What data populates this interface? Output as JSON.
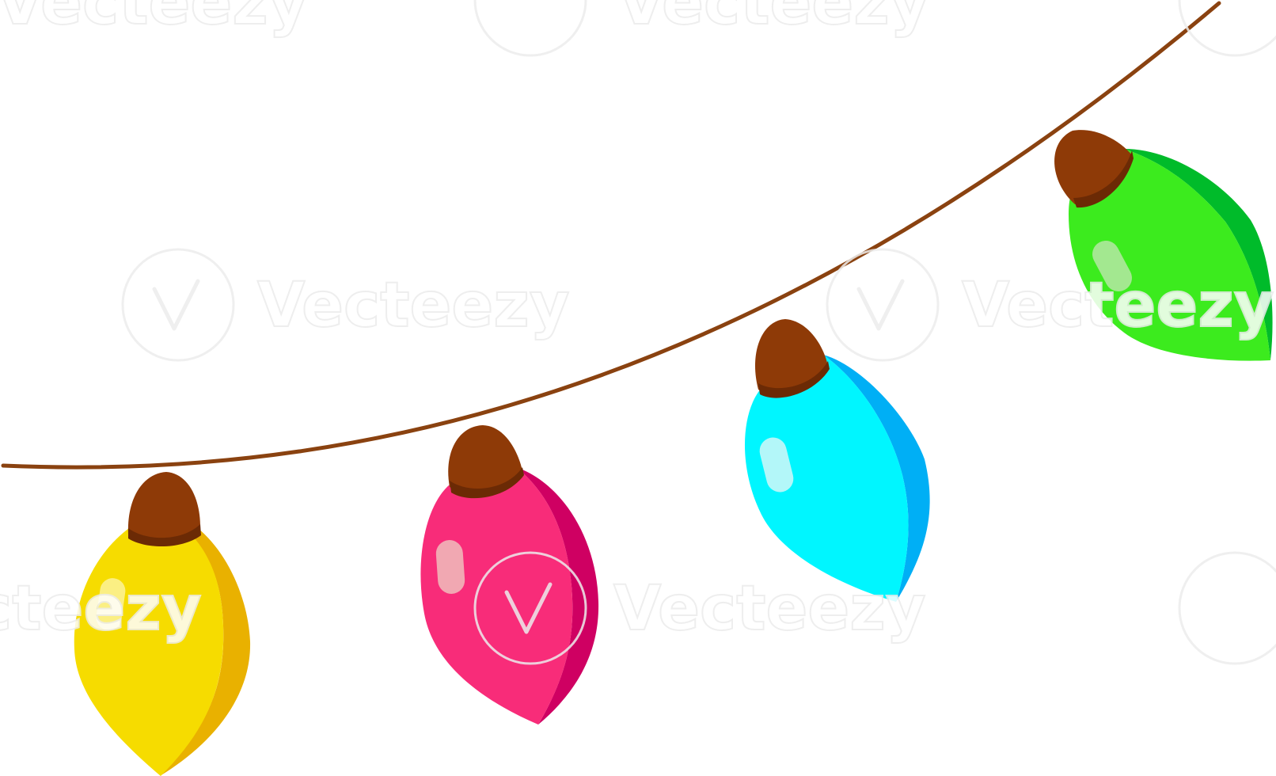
{
  "scene": {
    "subject": "string-lights",
    "colors": {
      "background": "#ffffff",
      "wire": "#8a4210",
      "cap": "#8e3a07",
      "cap_shadow": "#6b2a05"
    }
  },
  "bulbs": [
    {
      "name": "yellow",
      "body_color": "#f6dc00",
      "side_color": "#e9b100",
      "highlight_color": "#fbf29a"
    },
    {
      "name": "pink",
      "body_color": "#f82c79",
      "side_color": "#cf0062",
      "highlight_color": "#f0b6b8"
    },
    {
      "name": "cyan",
      "body_color": "#00f6ff",
      "side_color": "#00aff5",
      "highlight_color": "#c6f7f8"
    },
    {
      "name": "green",
      "body_color": "#3ceb1e",
      "side_color": "#00bb2a",
      "highlight_color": "#b5e8a5"
    }
  ],
  "watermark": {
    "text": "Vecteezy"
  }
}
